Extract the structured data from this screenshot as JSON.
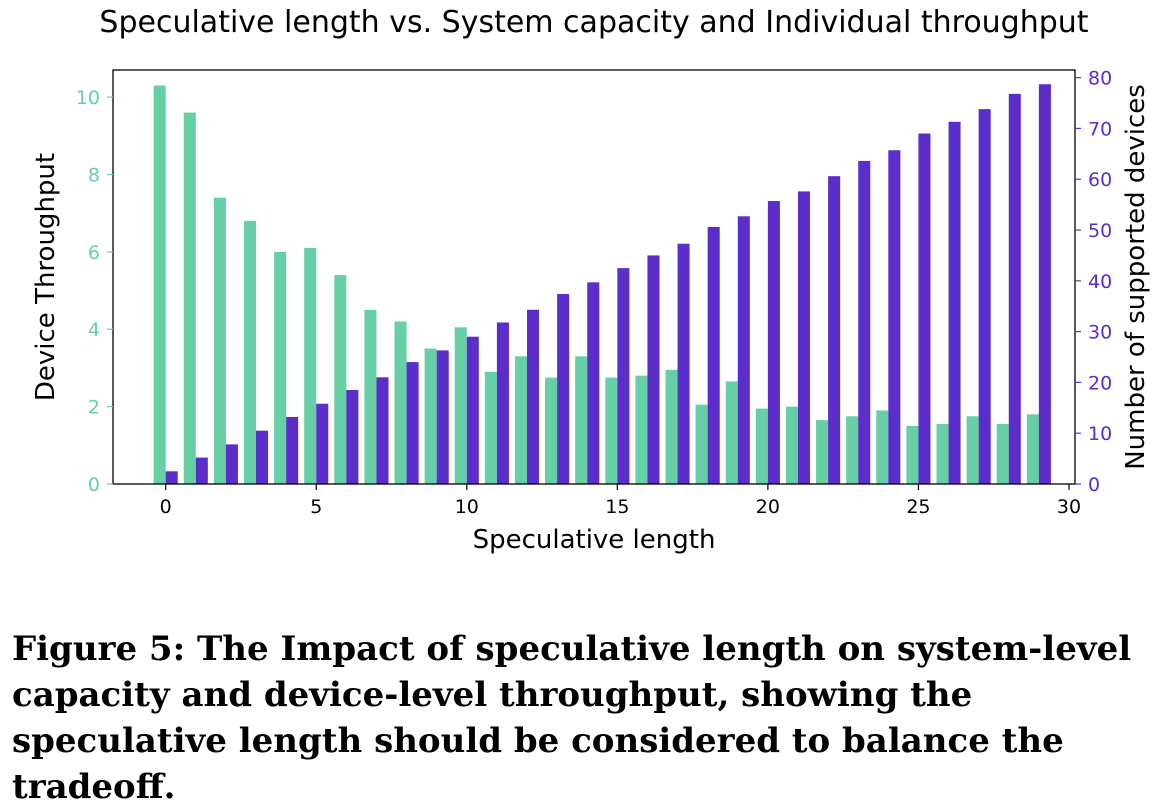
{
  "chart_data": {
    "type": "bar",
    "title": "Speculative length vs. System capacity and Individual throughput",
    "xlabel": "Speculative length",
    "ylabel": "Device Throughput",
    "ylabel_right": "Number of supported devices",
    "x": [
      0,
      1,
      2,
      3,
      4,
      5,
      6,
      7,
      8,
      9,
      10,
      11,
      12,
      13,
      14,
      15,
      16,
      17,
      18,
      19,
      20,
      21,
      22,
      23,
      24,
      25,
      26,
      27,
      28,
      29
    ],
    "xlim": [
      -1.75,
      30.2
    ],
    "xticks": [
      0,
      5,
      10,
      15,
      20,
      25,
      30
    ],
    "ylim": [
      0,
      10.7
    ],
    "yticks": [
      0,
      2,
      4,
      6,
      8,
      10
    ],
    "ylim_right": [
      0,
      81.5
    ],
    "yticks_right": [
      0,
      10,
      20,
      30,
      40,
      50,
      60,
      70,
      80
    ],
    "grid": false,
    "series": [
      {
        "axis": "left",
        "color": "#66cfa6",
        "values": [
          10.3,
          9.6,
          7.4,
          6.8,
          6.0,
          6.1,
          5.4,
          4.5,
          4.2,
          3.5,
          4.05,
          2.9,
          3.3,
          2.75,
          3.3,
          2.75,
          2.8,
          2.95,
          2.05,
          2.65,
          1.95,
          2.0,
          1.65,
          1.75,
          1.9,
          1.5,
          1.55,
          1.75,
          1.55,
          1.8
        ]
      },
      {
        "axis": "right",
        "color": "#5b2dcb",
        "values": [
          2.5,
          5.2,
          7.8,
          10.5,
          13.2,
          15.8,
          18.5,
          21.0,
          24.0,
          26.3,
          29.0,
          31.8,
          34.3,
          37.4,
          39.7,
          42.5,
          45.0,
          47.3,
          50.6,
          52.7,
          55.7,
          57.6,
          60.6,
          63.6,
          65.7,
          69.0,
          71.3,
          73.8,
          76.8,
          78.7
        ]
      }
    ],
    "colors": {
      "left_axis_text": "#66cfa6",
      "right_axis_text": "#5b2dcb"
    }
  },
  "caption": "Figure 5: The Impact of speculative length on system-level capacity and device-level throughput, showing the speculative length should be considered to balance the tradeoff."
}
